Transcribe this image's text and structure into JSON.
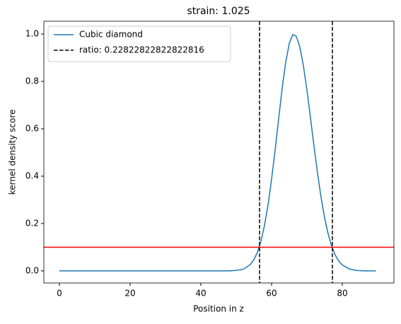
{
  "chart_data": {
    "type": "line",
    "title": "strain: 1.025",
    "xlabel": "Position in z",
    "ylabel": "kernel density score",
    "x": [
      0,
      10,
      20,
      30,
      40,
      45,
      48,
      50,
      52,
      54,
      55,
      56,
      57,
      58,
      59,
      60,
      61,
      62,
      63,
      64,
      65,
      66,
      67,
      68,
      69,
      70,
      71,
      72,
      73,
      74,
      75,
      76,
      77,
      78,
      79,
      80,
      82,
      84,
      86,
      89.5
    ],
    "series": [
      {
        "name": "Cubic diamond",
        "color": "#1f77b4",
        "values": [
          0,
          0,
          0,
          0,
          0,
          0,
          0,
          0.002,
          0.007,
          0.027,
          0.047,
          0.079,
          0.126,
          0.192,
          0.279,
          0.387,
          0.51,
          0.642,
          0.771,
          0.881,
          0.96,
          0.998,
          0.99,
          0.945,
          0.866,
          0.763,
          0.646,
          0.526,
          0.412,
          0.31,
          0.224,
          0.156,
          0.104,
          0.067,
          0.041,
          0.025,
          0.008,
          0.002,
          0,
          0
        ]
      }
    ],
    "vlines": [
      56.6,
      77.2
    ],
    "vline_label": "ratio: 0.22822822822822816",
    "vline_color": "#000000",
    "hline": 0.1,
    "hline_color": "#ff0000",
    "xlim": [
      -4.4,
      94.6
    ],
    "xticks": [
      0,
      20,
      40,
      60,
      80
    ],
    "ylim": [
      -0.051,
      1.054
    ],
    "yticks": [
      {
        "value": 0,
        "label": "0.0"
      },
      0.2,
      0.4,
      0.6,
      0.8,
      {
        "value": 1,
        "label": "1.0"
      }
    ],
    "legend": "upper-left",
    "grid": false
  }
}
